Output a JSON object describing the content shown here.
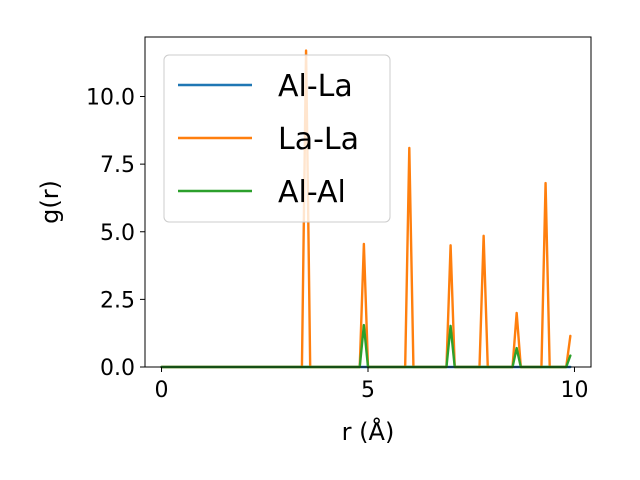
{
  "chart_data": {
    "type": "line",
    "title": "",
    "xlabel": "r (Å)",
    "ylabel": "g(r)",
    "xlim": [
      -0.4,
      10.4
    ],
    "ylim": [
      0,
      12.2
    ],
    "xticks": [
      0,
      5,
      10
    ],
    "xtick_labels": [
      "0",
      "5",
      "10"
    ],
    "yticks": [
      0.0,
      2.5,
      5.0,
      7.5,
      10.0
    ],
    "ytick_labels": [
      "0.0",
      "2.5",
      "5.0",
      "7.5",
      "10.0"
    ],
    "grid": false,
    "legend_position": "top-left",
    "series": [
      {
        "name": "Al-La",
        "color": "#1f77b4",
        "points": [
          [
            0,
            0
          ],
          [
            9.9,
            0
          ]
        ]
      },
      {
        "name": "La-La",
        "color": "#ff7f0e",
        "points": [
          [
            0,
            0
          ],
          [
            3.4,
            0
          ],
          [
            3.5,
            11.7
          ],
          [
            3.6,
            0
          ],
          [
            4.8,
            0
          ],
          [
            4.9,
            4.55
          ],
          [
            5.0,
            0
          ],
          [
            5.9,
            0
          ],
          [
            6.0,
            8.1
          ],
          [
            6.1,
            0
          ],
          [
            6.9,
            0
          ],
          [
            7.0,
            4.5
          ],
          [
            7.1,
            0
          ],
          [
            7.7,
            0
          ],
          [
            7.8,
            4.85
          ],
          [
            7.9,
            0
          ],
          [
            8.5,
            0
          ],
          [
            8.6,
            2.0
          ],
          [
            8.7,
            0
          ],
          [
            9.2,
            0
          ],
          [
            9.3,
            6.8
          ],
          [
            9.4,
            0
          ],
          [
            9.8,
            0
          ],
          [
            9.9,
            1.15
          ]
        ]
      },
      {
        "name": "Al-Al",
        "color": "#2ca02c",
        "points": [
          [
            0,
            0
          ],
          [
            4.8,
            0
          ],
          [
            4.9,
            1.55
          ],
          [
            5.0,
            0
          ],
          [
            6.9,
            0
          ],
          [
            7.0,
            1.52
          ],
          [
            7.1,
            0
          ],
          [
            8.5,
            0
          ],
          [
            8.6,
            0.7
          ],
          [
            8.7,
            0
          ],
          [
            9.8,
            0
          ],
          [
            9.9,
            0.42
          ]
        ]
      }
    ]
  }
}
